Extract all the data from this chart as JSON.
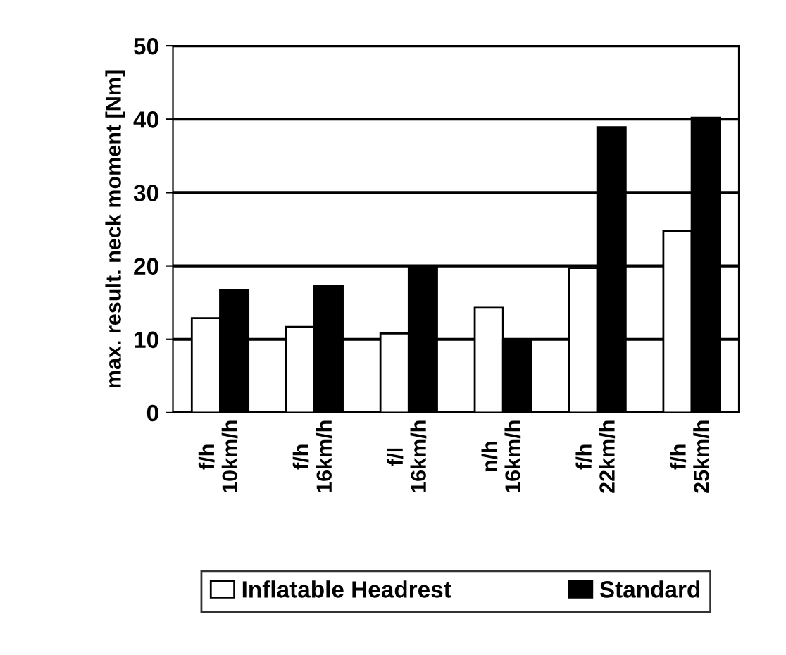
{
  "chart_data": {
    "type": "bar",
    "ylabel": "max. result. neck moment [Nm]",
    "categories": [
      "f/h\n10km/h",
      "f/h\n16km/h",
      "f/l\n16km/h",
      "n/h\n16km/h",
      "f/h\n22km/h",
      "f/h\n25km/h"
    ],
    "series": [
      {
        "name": "Inflatable Headrest",
        "color": "#ffffff",
        "values": [
          12.9,
          11.7,
          10.8,
          14.3,
          19.7,
          24.8
        ]
      },
      {
        "name": "Standard",
        "color": "#000000",
        "values": [
          16.7,
          17.3,
          20.0,
          9.9,
          38.9,
          40.2
        ]
      }
    ],
    "ylim": [
      0,
      50
    ],
    "yticks": [
      0,
      10,
      20,
      30,
      40,
      50
    ],
    "grid": "y",
    "legend": "bottom"
  }
}
